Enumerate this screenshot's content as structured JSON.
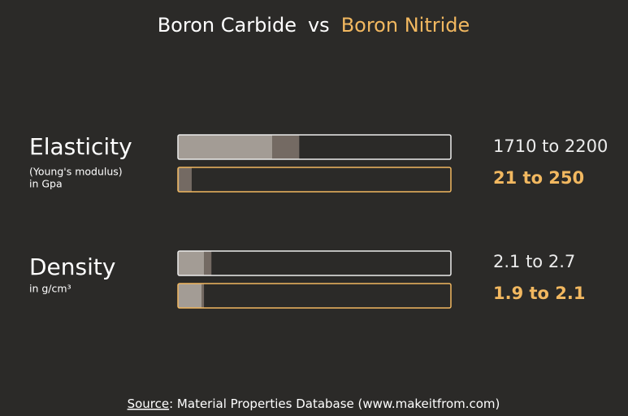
{
  "chart_data": {
    "type": "range-bar",
    "title_separator": "vs",
    "series": [
      {
        "name": "Boron Carbide",
        "color": "#ececec"
      },
      {
        "name": "Boron Nitride",
        "color": "#f2b860"
      }
    ],
    "bar_colors": [
      "#a39c95",
      "#746a63"
    ],
    "groups": [
      {
        "label": "Elasticity",
        "sublabel": [
          "(Young's modulus)",
          "in Gpa"
        ],
        "xlim": [
          0,
          4950
        ],
        "values": [
          [
            1710,
            2200
          ],
          [
            21,
            250
          ]
        ],
        "value_labels": [
          "1710 to 2200",
          "21 to 250"
        ]
      },
      {
        "label": "Density",
        "sublabel": [
          "in g/cm³"
        ],
        "xlim": [
          0,
          22
        ],
        "values": [
          [
            2.1,
            2.7
          ],
          [
            1.9,
            2.1
          ]
        ],
        "value_labels": [
          "2.1 to 2.7",
          "1.9 to 2.1"
        ]
      }
    ],
    "source_label": "Source",
    "source_text": ": Material Properties Database (www.makeitfrom.com)"
  }
}
